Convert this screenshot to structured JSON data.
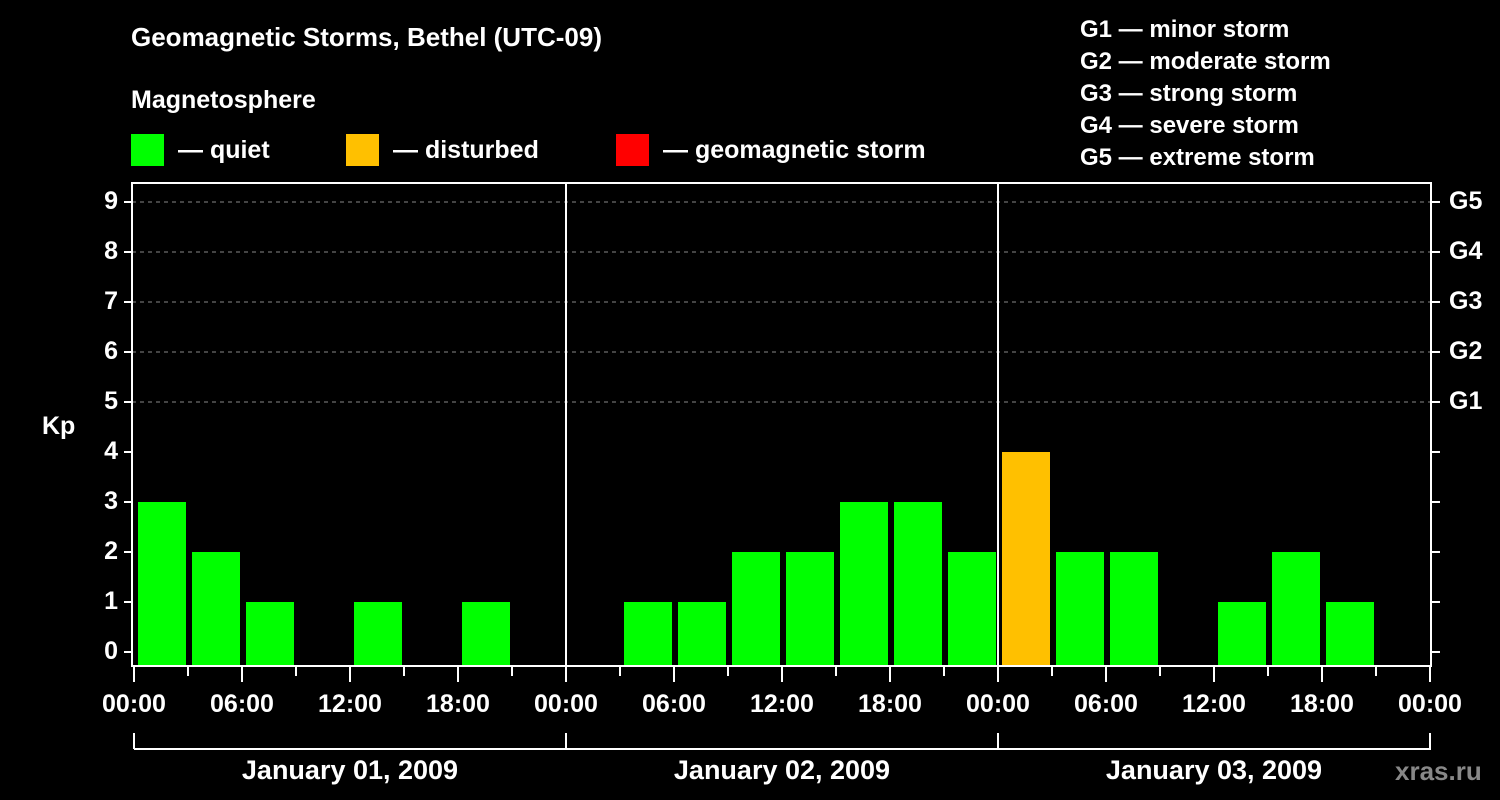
{
  "header": {
    "title": "Geomagnetic Storms, Bethel (UTC-09)",
    "subtitle": "Magnetosphere"
  },
  "legend": [
    {
      "label": "— quiet",
      "color": "#00ff00"
    },
    {
      "label": "— disturbed",
      "color": "#ffc000"
    },
    {
      "label": "— geomagnetic storm",
      "color": "#ff0000"
    }
  ],
  "storm_scale": [
    "G1 — minor storm",
    "G2 — moderate storm",
    "G3 — strong storm",
    "G4 — severe storm",
    "G5 — extreme storm"
  ],
  "watermark": "xras.ru",
  "chart_data": {
    "type": "bar",
    "title": "Geomagnetic Storms, Bethel (UTC-09)",
    "xlabel": "",
    "ylabel": "Kp",
    "ylim": [
      0,
      9
    ],
    "yticks": [
      "0",
      "1",
      "2",
      "3",
      "4",
      "5",
      "6",
      "7",
      "8",
      "9"
    ],
    "right_axis_ticks": [
      {
        "value": 5,
        "label": "G1"
      },
      {
        "value": 6,
        "label": "G2"
      },
      {
        "value": 7,
        "label": "G3"
      },
      {
        "value": 8,
        "label": "G4"
      },
      {
        "value": 9,
        "label": "G5"
      }
    ],
    "grid": "dashed horizontal at Kp 5-9",
    "xtick_labels": [
      "00:00",
      "06:00",
      "12:00",
      "18:00",
      "00:00",
      "06:00",
      "12:00",
      "18:00",
      "00:00",
      "06:00",
      "12:00",
      "18:00",
      "00:00"
    ],
    "days": [
      "January 01, 2009",
      "January 02, 2009",
      "January 03, 2009"
    ],
    "categories": [
      "Jan01 00:00",
      "Jan01 03:00",
      "Jan01 06:00",
      "Jan01 09:00",
      "Jan01 12:00",
      "Jan01 15:00",
      "Jan01 18:00",
      "Jan01 21:00",
      "Jan02 00:00",
      "Jan02 03:00",
      "Jan02 06:00",
      "Jan02 09:00",
      "Jan02 12:00",
      "Jan02 15:00",
      "Jan02 18:00",
      "Jan02 21:00",
      "Jan03 00:00",
      "Jan03 03:00",
      "Jan03 06:00",
      "Jan03 09:00",
      "Jan03 12:00",
      "Jan03 15:00",
      "Jan03 18:00",
      "Jan03 21:00"
    ],
    "values": [
      3,
      2,
      1,
      0,
      1,
      0,
      1,
      0,
      0,
      1,
      1,
      2,
      2,
      3,
      3,
      2,
      4,
      2,
      2,
      0,
      1,
      2,
      1,
      0
    ],
    "colors": {
      "quiet": "#00ff00",
      "disturbed": "#ffc000",
      "storm": "#ff0000"
    }
  }
}
